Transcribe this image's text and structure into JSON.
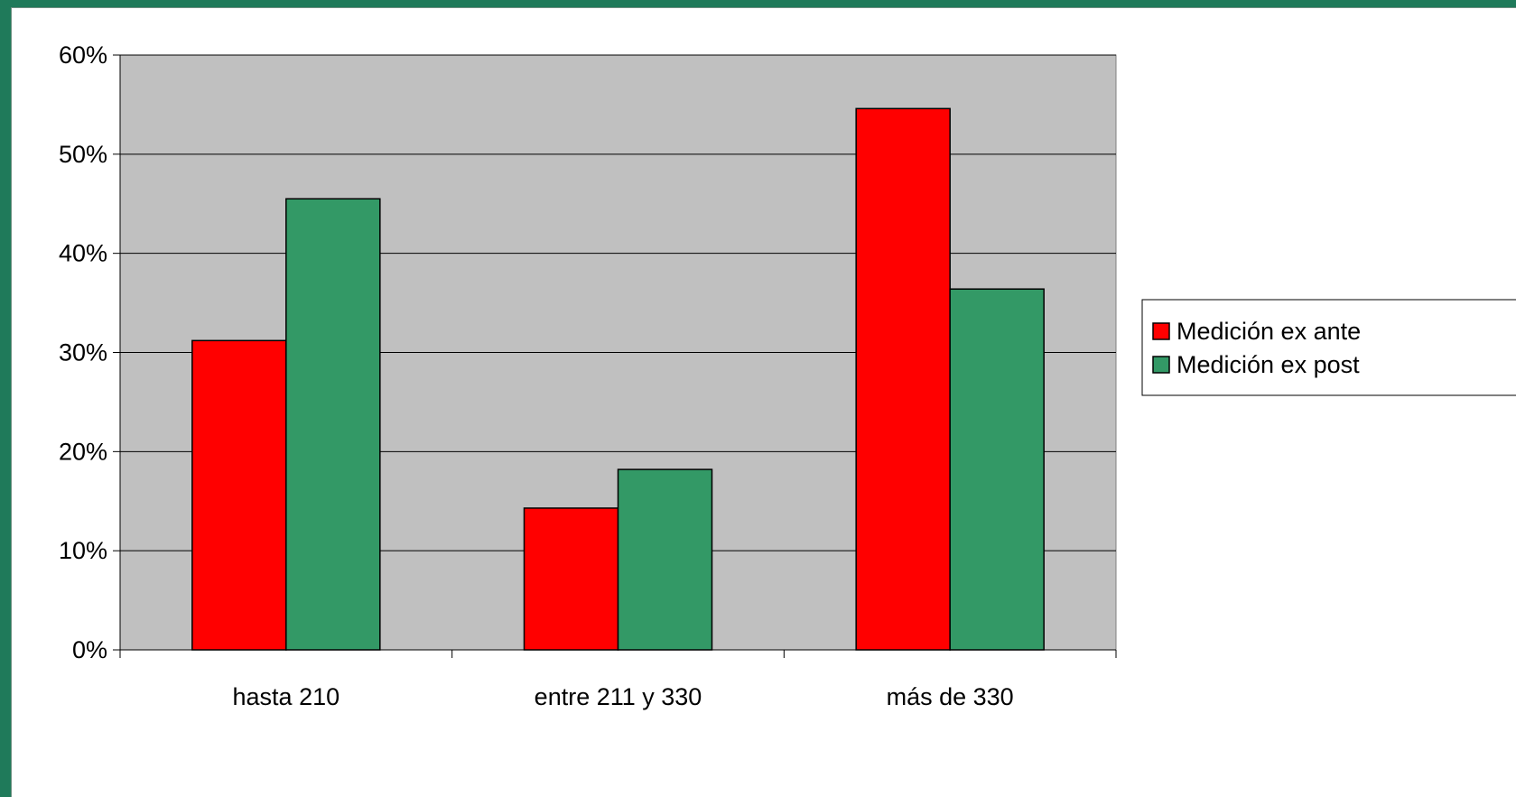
{
  "chart_data": {
    "type": "bar",
    "categories": [
      "hasta 210",
      "entre 211 y 330",
      "más de 330"
    ],
    "series": [
      {
        "name": "Medición ex ante",
        "values": [
          31.2,
          14.3,
          54.6
        ],
        "color": "#ff0000"
      },
      {
        "name": "Medición ex post",
        "values": [
          45.5,
          18.2,
          36.4
        ],
        "color": "#339966"
      }
    ],
    "ylim": [
      0,
      60
    ],
    "yticks": [
      "0%",
      "10%",
      "20%",
      "30%",
      "40%",
      "50%",
      "60%"
    ],
    "ytick_values": [
      0,
      10,
      20,
      30,
      40,
      50,
      60
    ],
    "grid": true,
    "legend_position": "right",
    "plot_background": "#c0c0c0"
  }
}
